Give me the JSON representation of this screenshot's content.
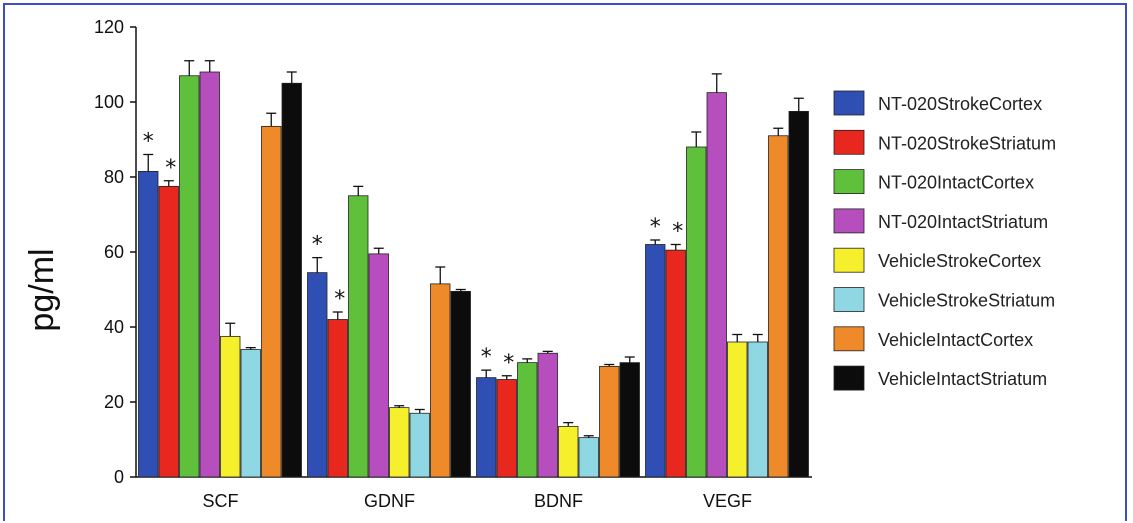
{
  "chart_data": {
    "type": "bar",
    "title": "",
    "xlabel": "",
    "ylabel": "pg/ml",
    "ylim": [
      0,
      120
    ],
    "yticks": [
      0,
      20,
      40,
      60,
      80,
      100,
      120
    ],
    "categories": [
      "SCF",
      "GDNF",
      "BDNF",
      "VEGF"
    ],
    "legend_position": "right",
    "series": [
      {
        "name": "NT-020StrokeCortex",
        "color": "#2f4fb5",
        "values": [
          81.5,
          54.5,
          26.5,
          62
        ],
        "errors": [
          4.5,
          4,
          2,
          1.2
        ],
        "significant": [
          true,
          true,
          true,
          true
        ]
      },
      {
        "name": "NT-020StrokeStriatum",
        "color": "#e8281e",
        "values": [
          77.5,
          42,
          26,
          60.5
        ],
        "errors": [
          1.5,
          2,
          1,
          1.5
        ],
        "significant": [
          true,
          true,
          true,
          true
        ]
      },
      {
        "name": "NT-020IntactCortex",
        "color": "#5fc13b",
        "values": [
          107,
          75,
          30.5,
          88
        ],
        "errors": [
          4,
          2.5,
          1,
          4
        ],
        "significant": [
          false,
          false,
          false,
          false
        ]
      },
      {
        "name": "NT-020IntactStriatum",
        "color": "#b64fbd",
        "values": [
          108,
          59.5,
          33,
          102.5
        ],
        "errors": [
          3,
          1.5,
          0.5,
          5
        ],
        "significant": [
          false,
          false,
          false,
          false
        ]
      },
      {
        "name": "VehicleStrokeCortex",
        "color": "#f6ef2c",
        "values": [
          37.5,
          18.5,
          13.5,
          36
        ],
        "errors": [
          3.5,
          0.5,
          1,
          2
        ],
        "significant": [
          false,
          false,
          false,
          false
        ]
      },
      {
        "name": "VehicleStrokeStriatum",
        "color": "#8fd7e3",
        "values": [
          34,
          17,
          10.5,
          36
        ],
        "errors": [
          0.5,
          1,
          0.5,
          2
        ],
        "significant": [
          false,
          false,
          false,
          false
        ]
      },
      {
        "name": "VehicleIntactCortex",
        "color": "#ee8a2a",
        "values": [
          93.5,
          51.5,
          29.5,
          91
        ],
        "errors": [
          3.5,
          4.5,
          0.5,
          2
        ],
        "significant": [
          false,
          false,
          false,
          false
        ]
      },
      {
        "name": "VehicleIntactStriatum",
        "color": "#0c0c0c",
        "values": [
          105,
          49.5,
          30.5,
          97.5
        ],
        "errors": [
          3,
          0.5,
          1.5,
          3.5
        ],
        "significant": [
          false,
          false,
          false,
          false
        ]
      }
    ],
    "significance_marker": "*"
  }
}
